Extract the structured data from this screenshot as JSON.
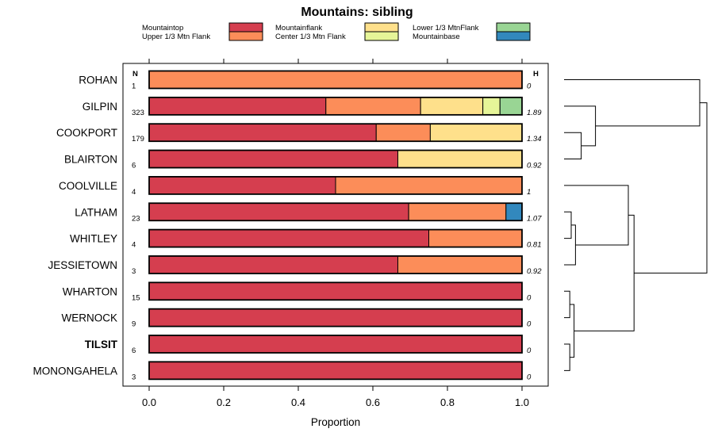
{
  "chart_data": {
    "type": "bar",
    "orientation": "horizontal",
    "stacked": true,
    "title": "Mountains: sibling",
    "xlabel": "Proportion",
    "xlim": [
      0,
      1
    ],
    "x_ticks": [
      "0.0",
      "0.2",
      "0.4",
      "0.6",
      "0.8",
      "1.0"
    ],
    "x_tick_values": [
      0,
      0.2,
      0.4,
      0.6,
      0.8,
      1.0
    ],
    "n_header": "N",
    "h_header": "H",
    "legend": [
      {
        "name": "Mountaintop",
        "color": "#d53e4f"
      },
      {
        "name": "Upper 1/3 Mtn Flank",
        "color": "#fc8d59"
      },
      {
        "name": "Mountainflank",
        "color": "#fee08b"
      },
      {
        "name": "Center 1/3 Mtn Flank",
        "color": "#e6f598"
      },
      {
        "name": "Lower 1/3 MtnFlank",
        "color": "#99d594"
      },
      {
        "name": "Mountainbase",
        "color": "#3288bd"
      }
    ],
    "rows": [
      {
        "site": "ROHAN",
        "n": "1",
        "h": "0",
        "bold": false,
        "values": [
          0,
          1.0,
          0,
          0,
          0,
          0
        ]
      },
      {
        "site": "GILPIN",
        "n": "323",
        "h": "1.89",
        "bold": false,
        "values": [
          0.474,
          0.254,
          0.167,
          0.046,
          0.059,
          0
        ]
      },
      {
        "site": "COOKPORT",
        "n": "179",
        "h": "1.34",
        "bold": false,
        "values": [
          0.609,
          0.145,
          0.246,
          0,
          0,
          0
        ]
      },
      {
        "site": "BLAIRTON",
        "n": "6",
        "h": "0.92",
        "bold": false,
        "values": [
          0.667,
          0,
          0.333,
          0,
          0,
          0
        ]
      },
      {
        "site": "COOLVILLE",
        "n": "4",
        "h": "1",
        "bold": false,
        "values": [
          0.5,
          0.5,
          0,
          0,
          0,
          0
        ]
      },
      {
        "site": "LATHAM",
        "n": "23",
        "h": "1.07",
        "bold": false,
        "values": [
          0.696,
          0.261,
          0,
          0,
          0,
          0.043
        ]
      },
      {
        "site": "WHITLEY",
        "n": "4",
        "h": "0.81",
        "bold": false,
        "values": [
          0.75,
          0.25,
          0,
          0,
          0,
          0
        ]
      },
      {
        "site": "JESSIETOWN",
        "n": "3",
        "h": "0.92",
        "bold": false,
        "values": [
          0.667,
          0.333,
          0,
          0,
          0,
          0
        ]
      },
      {
        "site": "WHARTON",
        "n": "15",
        "h": "0",
        "bold": false,
        "values": [
          1.0,
          0,
          0,
          0,
          0,
          0
        ]
      },
      {
        "site": "WERNOCK",
        "n": "9",
        "h": "0",
        "bold": false,
        "values": [
          1.0,
          0,
          0,
          0,
          0,
          0
        ]
      },
      {
        "site": "TILSIT",
        "n": "6",
        "h": "0",
        "bold": true,
        "values": [
          1.0,
          0,
          0,
          0,
          0,
          0
        ]
      },
      {
        "site": "MONONGAHELA",
        "n": "3",
        "h": "0",
        "bold": false,
        "values": [
          1.0,
          0,
          0,
          0,
          0,
          0
        ]
      }
    ],
    "dendrogram": {
      "leaf_order": [
        "ROHAN",
        "GILPIN",
        "COOKPORT",
        "BLAIRTON",
        "COOLVILLE",
        "LATHAM",
        "WHITLEY",
        "JESSIETOWN",
        "WHARTON",
        "WERNOCK",
        "TILSIT",
        "MONONGAHELA"
      ],
      "merges": [
        {
          "a": "COOKPORT",
          "b": "BLAIRTON",
          "height": 0.12
        },
        {
          "a": "GILPIN",
          "b": "COOKPORT+BLAIRTON",
          "height": 0.22
        },
        {
          "a": "ROHAN",
          "b": "GILPIN+COOKPORT+BLAIRTON",
          "height": 0.95
        },
        {
          "a": "LATHAM",
          "b": "WHITLEY",
          "height": 0.05
        },
        {
          "a": "LATHAM+WHITLEY",
          "b": "JESSIETOWN",
          "height": 0.08
        },
        {
          "a": "COOLVILLE",
          "b": "LATHAM+WHITLEY+JESSIETOWN",
          "height": 0.45
        },
        {
          "a": "WHARTON",
          "b": "WERNOCK",
          "height": 0.04
        },
        {
          "a": "TILSIT",
          "b": "MONONGAHELA",
          "height": 0.04
        },
        {
          "a": "WHARTON+WERNOCK",
          "b": "TILSIT+MONONGAHELA",
          "height": 0.07
        },
        {
          "a": "COOLVILLE+LATHAM+WHITLEY+JESSIETOWN",
          "b": "WHARTON+WERNOCK+TILSIT+MONONGAHELA",
          "height": 0.49
        },
        {
          "a": "ROHAN+GILPIN+COOKPORT+BLAIRTON",
          "b": "COOLVILLE+LATHAM+WHITLEY+JESSIETOWN+WHARTON+WERNOCK+TILSIT+MONONGAHELA",
          "height": 1.0
        }
      ]
    }
  }
}
